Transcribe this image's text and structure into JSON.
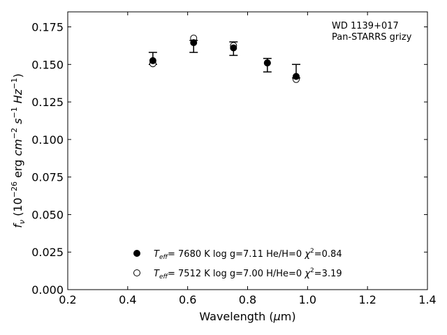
{
  "chart_data": {
    "type": "scatter",
    "x_label": "Wavelength (μm)",
    "y_label": "f_ν (10^−26 erg cm^−2 s^−1 Hz^−1)",
    "xlim": [
      0.2,
      1.4
    ],
    "ylim": [
      0.0,
      0.185
    ],
    "x_ticks": [
      "0.2",
      "0.4",
      "0.6",
      "0.8",
      "1.0",
      "1.2",
      "1.4"
    ],
    "y_ticks": [
      "0.000",
      "0.025",
      "0.050",
      "0.075",
      "0.100",
      "0.125",
      "0.150",
      "0.175"
    ],
    "annotation": [
      "WD 1139+017",
      "Pan-STARRS grizy"
    ],
    "observed": {
      "x": [
        0.484,
        0.62,
        0.753,
        0.866,
        0.962
      ],
      "y": [
        0.154,
        0.162,
        0.16,
        0.149,
        0.145
      ],
      "yerr_low": [
        0.004,
        0.004,
        0.004,
        0.004,
        0.004
      ],
      "yerr_high": [
        0.004,
        0.004,
        0.005,
        0.005,
        0.005
      ]
    },
    "series": [
      {
        "name": "T_eff= 7680 K  log g=7.11  He/H=0  χ2=0.84",
        "marker": "filled-circle",
        "x": [
          0.484,
          0.62,
          0.753,
          0.866,
          0.962
        ],
        "y": [
          0.1525,
          0.1645,
          0.161,
          0.151,
          0.142
        ]
      },
      {
        "name": "T_eff= 7512 K  log g=7.00  H/He=0  χ2=3.19",
        "marker": "open-circle",
        "x": [
          0.484,
          0.62,
          0.753,
          0.866,
          0.962
        ],
        "y": [
          0.1505,
          0.1675,
          0.1625,
          0.151,
          0.14
        ]
      }
    ],
    "legend": [
      {
        "marker": "filled-circle",
        "teff": "7680 K",
        "logg": "log g=7.11",
        "comp": "He/H=0",
        "chi": "χ2=0.84"
      },
      {
        "marker": "open-circle",
        "teff": "7512 K",
        "logg": "log g=7.00",
        "comp": "H/He=0",
        "chi": "χ2=3.19"
      }
    ],
    "legend_placement": "bottom-center",
    "grid": false
  }
}
